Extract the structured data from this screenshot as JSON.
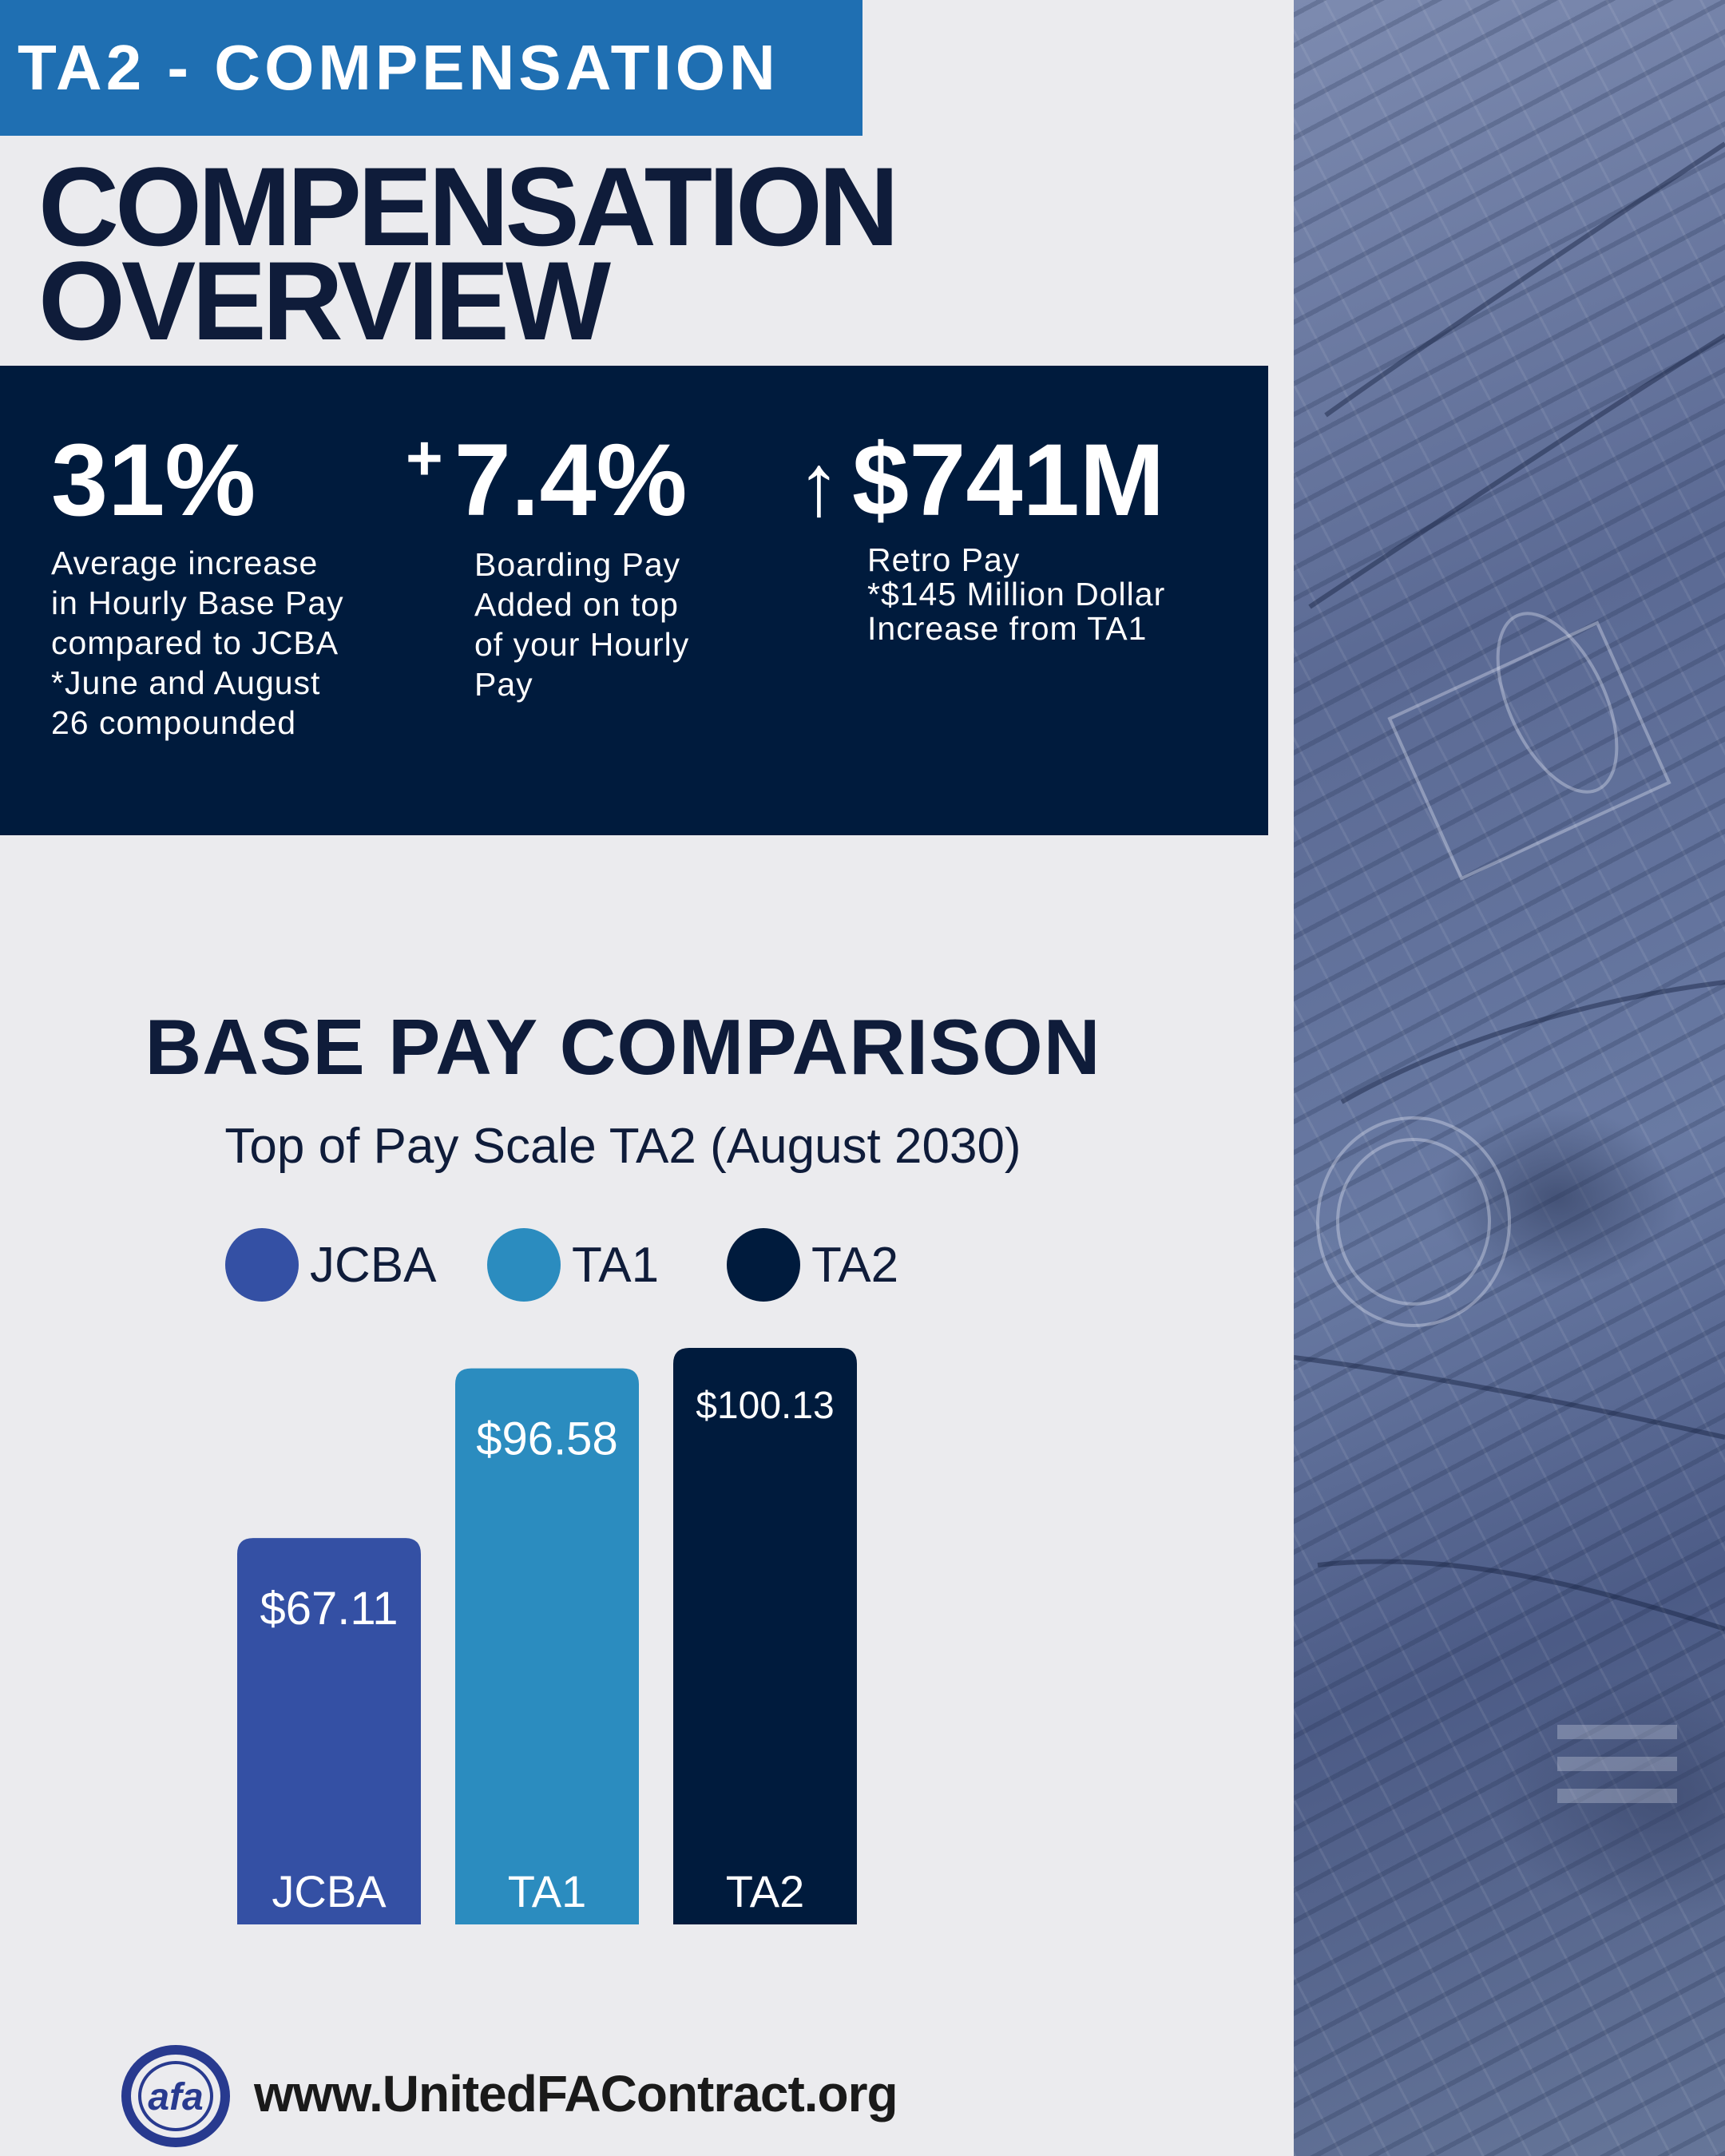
{
  "header": {
    "tag": "TA2 - COMPENSATION"
  },
  "headline": {
    "line1": "COMPENSATION",
    "line2": "OVERVIEW"
  },
  "stats": [
    {
      "value": "31%",
      "prefix": "",
      "lines": [
        "Average increase",
        "in Hourly Base Pay",
        "compared to JCBA",
        "*June and August",
        "26 compounded"
      ]
    },
    {
      "value": "7.4%",
      "prefix": "+",
      "lines": [
        "Boarding Pay",
        "Added on top",
        "of your Hourly",
        "Pay"
      ]
    },
    {
      "value": "$741M",
      "prefix": "↑",
      "lines": [
        "Retro Pay",
        "*$145 Million Dollar",
        "Increase from TA1"
      ]
    }
  ],
  "chart_data": {
    "type": "bar",
    "title": "BASE PAY COMPARISON",
    "subtitle": "Top of Pay Scale TA2 (August 2030)",
    "categories": [
      "JCBA",
      "TA1",
      "TA2"
    ],
    "values": [
      67.11,
      96.58,
      100.13
    ],
    "value_labels": [
      "$67.11",
      "$96.58",
      "$100.13"
    ],
    "colors": [
      "#3450a4",
      "#2b8cbf",
      "#001b3d"
    ],
    "legend": [
      "JCBA",
      "TA1",
      "TA2"
    ],
    "legend_placement": "top",
    "grid": false
  },
  "footer": {
    "logo_text": "afa",
    "url": "www.UnitedFAContract.org"
  }
}
